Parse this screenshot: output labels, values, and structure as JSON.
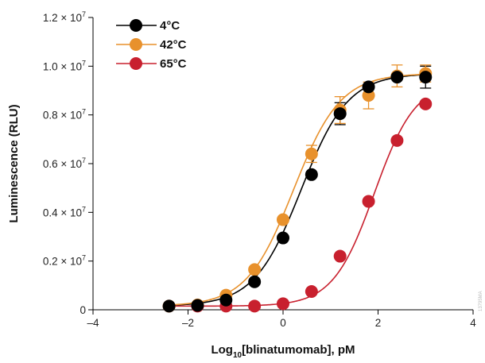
{
  "chart_data": {
    "type": "scatter",
    "xlabel_main": "Log",
    "xlabel_sub": "10",
    "xlabel_rest": "[blinatumomab], pM",
    "ylabel": "Luminescence (RLU)",
    "xlim": [
      -4,
      4
    ],
    "ylim": [
      0,
      12000000
    ],
    "x_ticks": [
      -4,
      -2,
      0,
      2,
      4
    ],
    "x_tick_labels": [
      "–4",
      "–2",
      "0",
      "2",
      "4"
    ],
    "y_ticks": [
      0,
      2000000,
      4000000,
      6000000,
      8000000,
      10000000,
      12000000
    ],
    "y_tick_prefix": [
      "0",
      "0.2 × 10",
      "0.4 × 10",
      "0.6 × 10",
      "0.8 × 10",
      "1.0 × 10",
      "1.2 × 10"
    ],
    "y_tick_exp": [
      "",
      "7",
      "7",
      "7",
      "7",
      "7",
      "7"
    ],
    "grid": false,
    "legend_position": "top-left",
    "watermark": "13795MA",
    "series": [
      {
        "name": "4°C",
        "color": "#000000",
        "fit": {
          "bottom": 150000,
          "top": 9700000,
          "logEC50": 0.38,
          "hill": 0.88
        },
        "x": [
          -2.4,
          -1.8,
          -1.2,
          -0.6,
          0.0,
          0.6,
          1.2,
          1.8,
          2.4,
          3.0
        ],
        "y": [
          150000,
          180000,
          400000,
          1150000,
          2950000,
          5550000,
          8050000,
          9150000,
          9550000,
          9550000
        ],
        "err": [
          0,
          0,
          0,
          0,
          0,
          0,
          450000,
          0,
          0,
          450000
        ]
      },
      {
        "name": "42°C",
        "color": "#E8912C",
        "fit": {
          "bottom": 150000,
          "top": 9700000,
          "logEC50": 0.22,
          "hill": 0.88
        },
        "x": [
          -2.4,
          -1.8,
          -1.2,
          -0.6,
          0.0,
          0.6,
          1.2,
          1.8,
          2.4,
          3.0
        ],
        "y": [
          150000,
          200000,
          600000,
          1650000,
          3700000,
          6400000,
          8200000,
          8800000,
          9600000,
          9700000
        ],
        "err": [
          0,
          0,
          0,
          0,
          0,
          350000,
          550000,
          550000,
          450000,
          350000
        ]
      },
      {
        "name": "65°C",
        "color": "#C8202E",
        "fit": {
          "bottom": 150000,
          "top": 9400000,
          "logEC50": 1.92,
          "hill": 1.0
        },
        "x": [
          -2.4,
          -1.8,
          -1.2,
          -0.6,
          0.0,
          0.6,
          1.2,
          1.8,
          2.4,
          3.0
        ],
        "y": [
          150000,
          150000,
          150000,
          150000,
          250000,
          750000,
          2200000,
          4450000,
          6950000,
          8450000
        ],
        "err": [
          0,
          0,
          0,
          0,
          0,
          0,
          0,
          0,
          0,
          0
        ]
      }
    ]
  }
}
